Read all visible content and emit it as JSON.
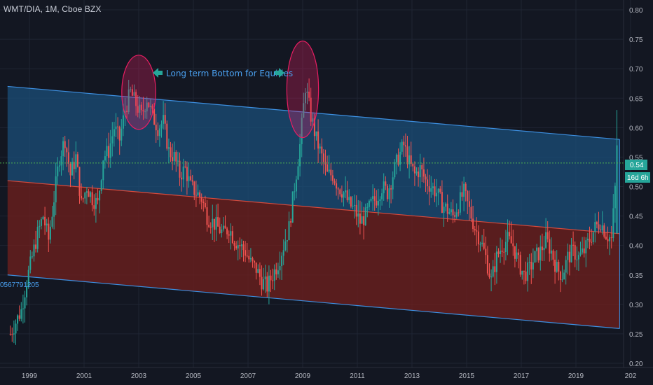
{
  "header": {
    "title": "WMT/DIA, 1M, Cboe BZX"
  },
  "annotation": {
    "text": "Long term Bottom for Equities"
  },
  "left_label": {
    "text": "0567791205"
  },
  "price_tag": {
    "value": "0.54",
    "countdown": "16d 6h"
  },
  "colors": {
    "background": "#131722",
    "up": "#26a69a",
    "down": "#ef5350",
    "upper_channel_fill": "#1b4f7a",
    "lower_channel_fill": "#6b1f1e",
    "channel_line": "#3d8fe0",
    "mid_line": "#d64a3c",
    "circle": "#e91e63",
    "price_line": "#4caf50"
  },
  "chart_data": {
    "type": "candlestick",
    "symbol": "WMT/DIA",
    "interval": "1M",
    "x_tick_labels": [
      "1999",
      "2001",
      "2003",
      "2005",
      "2007",
      "2009",
      "2011",
      "2013",
      "2015",
      "2017",
      "2019",
      "202"
    ],
    "x_range": [
      1998.2,
      2021.6
    ],
    "y_tick_labels": [
      "0.80",
      "0.75",
      "0.70",
      "0.65",
      "0.60",
      "0.55",
      "0.50",
      "0.45",
      "0.40",
      "0.35",
      "0.30",
      "0.25",
      "0.20"
    ],
    "ylim": [
      0.2,
      0.8
    ],
    "grid": true,
    "price_line": 0.54,
    "monthly_close_path": [
      [
        1998.3,
        0.25
      ],
      [
        1998.5,
        0.27
      ],
      [
        1998.7,
        0.29
      ],
      [
        1998.9,
        0.34
      ],
      [
        1999.1,
        0.38
      ],
      [
        1999.3,
        0.42
      ],
      [
        1999.5,
        0.45
      ],
      [
        1999.7,
        0.41
      ],
      [
        1999.9,
        0.48
      ],
      [
        2000.1,
        0.55
      ],
      [
        2000.3,
        0.58
      ],
      [
        2000.5,
        0.52
      ],
      [
        2000.7,
        0.55
      ],
      [
        2000.9,
        0.47
      ],
      [
        2001.1,
        0.5
      ],
      [
        2001.3,
        0.48
      ],
      [
        2001.5,
        0.47
      ],
      [
        2001.7,
        0.55
      ],
      [
        2001.9,
        0.56
      ],
      [
        2002.1,
        0.6
      ],
      [
        2002.3,
        0.58
      ],
      [
        2002.5,
        0.63
      ],
      [
        2002.7,
        0.66
      ],
      [
        2002.9,
        0.64
      ],
      [
        2003.1,
        0.62
      ],
      [
        2003.3,
        0.65
      ],
      [
        2003.5,
        0.62
      ],
      [
        2003.7,
        0.6
      ],
      [
        2003.9,
        0.61
      ],
      [
        2004.1,
        0.56
      ],
      [
        2004.3,
        0.55
      ],
      [
        2004.5,
        0.52
      ],
      [
        2004.7,
        0.53
      ],
      [
        2004.9,
        0.5
      ],
      [
        2005.1,
        0.49
      ],
      [
        2005.3,
        0.48
      ],
      [
        2005.5,
        0.45
      ],
      [
        2005.7,
        0.44
      ],
      [
        2005.9,
        0.43
      ],
      [
        2006.1,
        0.42
      ],
      [
        2006.3,
        0.43
      ],
      [
        2006.5,
        0.41
      ],
      [
        2006.7,
        0.4
      ],
      [
        2006.9,
        0.39
      ],
      [
        2007.1,
        0.37
      ],
      [
        2007.3,
        0.36
      ],
      [
        2007.5,
        0.34
      ],
      [
        2007.7,
        0.33
      ],
      [
        2007.9,
        0.35
      ],
      [
        2008.1,
        0.37
      ],
      [
        2008.3,
        0.4
      ],
      [
        2008.5,
        0.43
      ],
      [
        2008.7,
        0.5
      ],
      [
        2008.9,
        0.57
      ],
      [
        2009.1,
        0.67
      ],
      [
        2009.3,
        0.62
      ],
      [
        2009.5,
        0.58
      ],
      [
        2009.7,
        0.55
      ],
      [
        2009.9,
        0.52
      ],
      [
        2010.1,
        0.52
      ],
      [
        2010.3,
        0.5
      ],
      [
        2010.5,
        0.49
      ],
      [
        2010.7,
        0.47
      ],
      [
        2010.9,
        0.46
      ],
      [
        2011.1,
        0.44
      ],
      [
        2011.3,
        0.45
      ],
      [
        2011.5,
        0.47
      ],
      [
        2011.7,
        0.48
      ],
      [
        2011.9,
        0.5
      ],
      [
        2012.1,
        0.49
      ],
      [
        2012.3,
        0.52
      ],
      [
        2012.5,
        0.55
      ],
      [
        2012.7,
        0.57
      ],
      [
        2012.9,
        0.54
      ],
      [
        2013.1,
        0.52
      ],
      [
        2013.3,
        0.53
      ],
      [
        2013.5,
        0.51
      ],
      [
        2013.7,
        0.5
      ],
      [
        2013.9,
        0.49
      ],
      [
        2014.1,
        0.47
      ],
      [
        2014.3,
        0.46
      ],
      [
        2014.5,
        0.45
      ],
      [
        2014.7,
        0.47
      ],
      [
        2014.9,
        0.49
      ],
      [
        2015.1,
        0.46
      ],
      [
        2015.3,
        0.43
      ],
      [
        2015.5,
        0.41
      ],
      [
        2015.7,
        0.38
      ],
      [
        2015.9,
        0.34
      ],
      [
        2016.1,
        0.38
      ],
      [
        2016.3,
        0.4
      ],
      [
        2016.5,
        0.41
      ],
      [
        2016.7,
        0.4
      ],
      [
        2016.9,
        0.37
      ],
      [
        2017.1,
        0.35
      ],
      [
        2017.3,
        0.36
      ],
      [
        2017.5,
        0.38
      ],
      [
        2017.7,
        0.39
      ],
      [
        2017.9,
        0.41
      ],
      [
        2018.1,
        0.39
      ],
      [
        2018.3,
        0.36
      ],
      [
        2018.5,
        0.35
      ],
      [
        2018.7,
        0.38
      ],
      [
        2018.9,
        0.39
      ],
      [
        2019.1,
        0.38
      ],
      [
        2019.3,
        0.39
      ],
      [
        2019.5,
        0.41
      ],
      [
        2019.7,
        0.43
      ],
      [
        2019.9,
        0.44
      ],
      [
        2020.1,
        0.42
      ],
      [
        2020.3,
        0.41
      ],
      [
        2020.5,
        0.54
      ]
    ],
    "channel": {
      "upper": {
        "start": [
          1998.2,
          0.67
        ],
        "end": [
          2020.6,
          0.58
        ]
      },
      "middle": {
        "start": [
          1998.2,
          0.51
        ],
        "end": [
          2020.6,
          0.42
        ]
      },
      "lower": {
        "start": [
          1998.2,
          0.35
        ],
        "end": [
          2020.6,
          0.259
        ]
      }
    },
    "highlights": [
      {
        "center": [
          2003.0,
          0.66
        ],
        "rx_years": 0.62,
        "ry": 0.063
      },
      {
        "center": [
          2009.0,
          0.665
        ],
        "rx_years": 0.58,
        "ry": 0.082
      }
    ]
  }
}
